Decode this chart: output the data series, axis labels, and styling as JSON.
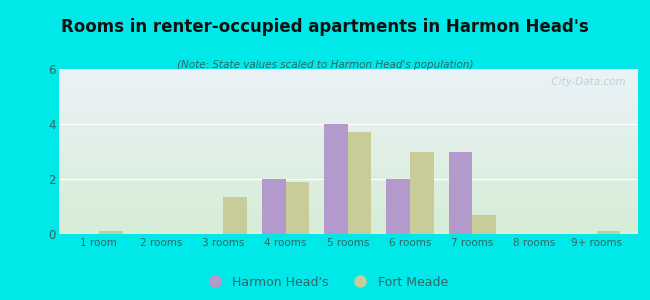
{
  "title": "Rooms in renter-occupied apartments in Harmon Head's",
  "subtitle": "(Note: State values scaled to Harmon Head's population)",
  "categories": [
    "1 room",
    "2 rooms",
    "3 rooms",
    "4 rooms",
    "5 rooms",
    "6 rooms",
    "7 rooms",
    "8 rooms",
    "9+ rooms"
  ],
  "harmon_heads": [
    0.0,
    0.0,
    0.0,
    2.0,
    4.0,
    2.0,
    3.0,
    0.0,
    0.0
  ],
  "fort_meade": [
    0.1,
    0.0,
    1.35,
    1.9,
    3.7,
    3.0,
    0.7,
    0.0,
    0.1
  ],
  "harmon_color": "#b399cc",
  "fort_color": "#c8cc99",
  "bg_color": "#00e8e8",
  "ylim": [
    0,
    6
  ],
  "yticks": [
    0,
    2,
    4,
    6
  ],
  "bar_width": 0.38,
  "watermark": "  City-Data.com",
  "legend_harmon": "Harmon Head's",
  "legend_fort": "Fort Meade",
  "title_color": "#111111",
  "subtitle_color": "#336666",
  "tick_color": "#336666",
  "watermark_color": "#aec8d0"
}
